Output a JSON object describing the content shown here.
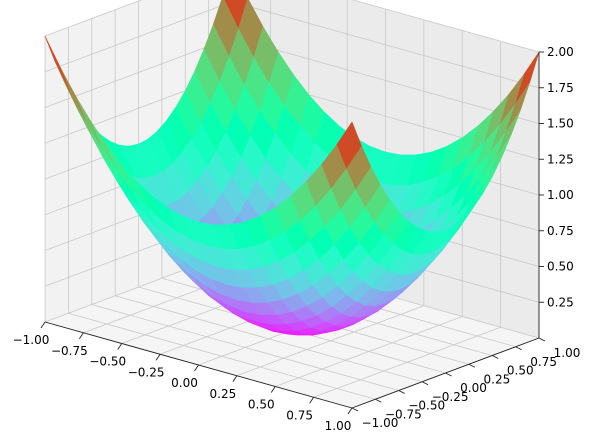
{
  "chart_data": {
    "type": "surface3d",
    "title": "",
    "xlabel": "",
    "ylabel": "",
    "zlabel": "",
    "function": "z = x^2 + y^2",
    "x_range": [
      -1.0,
      1.0
    ],
    "y_range": [
      -1.0,
      1.0
    ],
    "z_range": [
      0.0,
      2.0
    ],
    "grid_points": 21,
    "colormap": "rainbow",
    "x_ticks": [
      "−1.00",
      "−0.75",
      "−0.50",
      "−0.25",
      "0.00",
      "0.25",
      "0.50",
      "0.75",
      "1.00"
    ],
    "y_ticks": [
      "−1.00",
      "−0.75",
      "−0.50",
      "−0.25",
      "0.00",
      "0.25",
      "0.50",
      "0.75",
      "1.00"
    ],
    "z_ticks": [
      "0.25",
      "0.50",
      "0.75",
      "1.00",
      "1.25",
      "1.50",
      "1.75",
      "2.00"
    ],
    "grid": true,
    "pane_color": "#f2f2f2",
    "grid_color": "#c8c8c8"
  }
}
